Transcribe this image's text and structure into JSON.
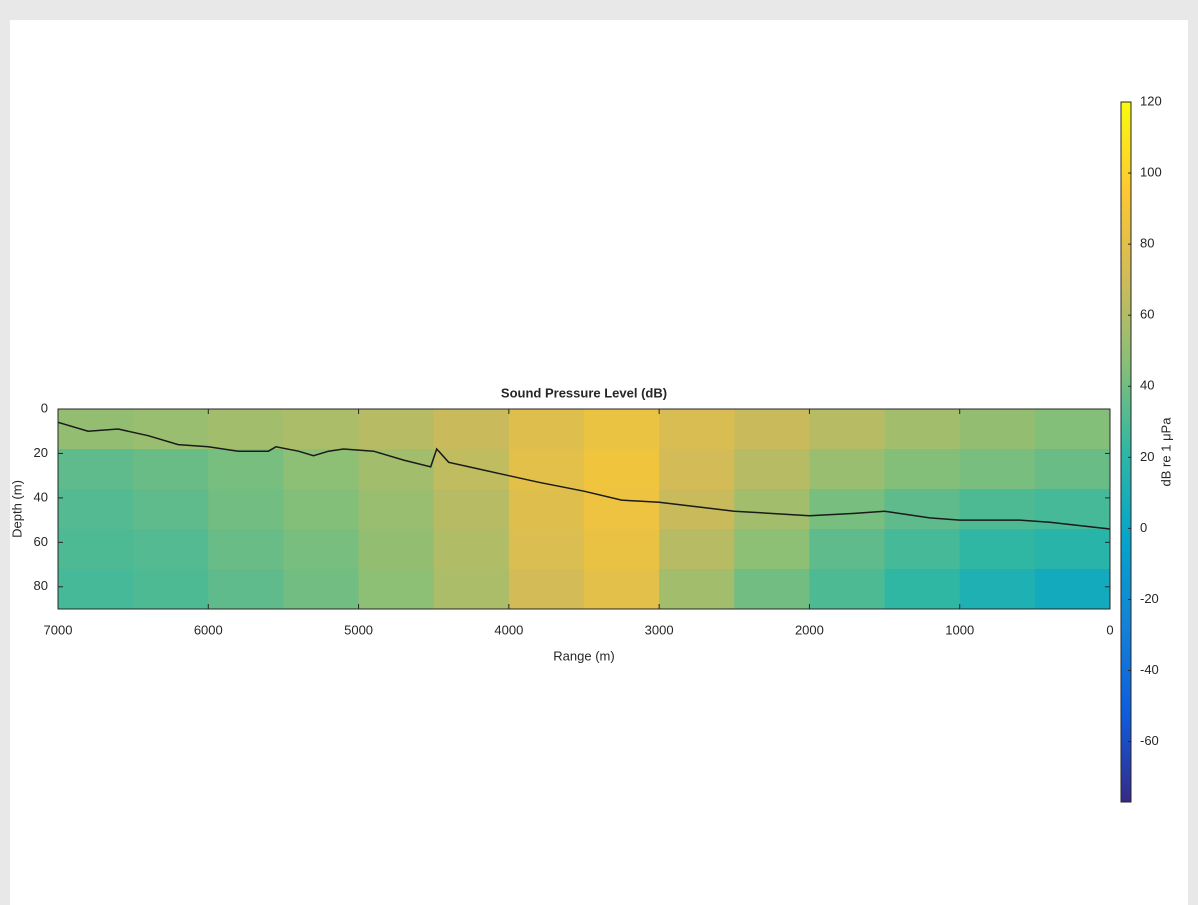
{
  "chart_data": {
    "type": "heatmap",
    "title": "Sound Pressure Level (dB)",
    "x_label": "Range (m)",
    "y_label": "Depth (m)",
    "xlim": [
      7000,
      0
    ],
    "xticks": [
      7000,
      6000,
      5000,
      4000,
      3000,
      2000,
      1000,
      0
    ],
    "ylim": [
      90,
      0
    ],
    "yticks": [
      0,
      20,
      40,
      60,
      80
    ],
    "x_centers": [
      6750,
      6250,
      5750,
      5250,
      4750,
      4250,
      3750,
      3250,
      2750,
      2250,
      1750,
      1250,
      750,
      250
    ],
    "y_centers": [
      9,
      27,
      45,
      63,
      81
    ],
    "z": [
      [
        50,
        52,
        55,
        58,
        62,
        68,
        78,
        85,
        75,
        68,
        62,
        55,
        50,
        45
      ],
      [
        35,
        38,
        42,
        48,
        55,
        65,
        80,
        88,
        72,
        62,
        52,
        45,
        42,
        38
      ],
      [
        32,
        35,
        40,
        45,
        52,
        62,
        78,
        86,
        68,
        55,
        42,
        35,
        30,
        28
      ],
      [
        30,
        32,
        38,
        42,
        50,
        60,
        76,
        84,
        62,
        48,
        35,
        28,
        22,
        18
      ],
      [
        28,
        30,
        35,
        40,
        48,
        58,
        72,
        80,
        55,
        40,
        30,
        22,
        12,
        5
      ]
    ],
    "colormap": [
      "#352a87",
      "#0f5cdd",
      "#1481d6",
      "#06a4ca",
      "#2eb7a4",
      "#87bf77",
      "#d1bb59",
      "#fec832",
      "#f9fb0e"
    ],
    "clim": [
      -77,
      120
    ],
    "cticks": [
      -60,
      -40,
      -20,
      0,
      20,
      40,
      60,
      80,
      100,
      120
    ],
    "colorbar_label": "dB re 1 μPa",
    "line": {
      "color": "#1a1a1a",
      "x": [
        7000,
        6800,
        6600,
        6400,
        6200,
        6000,
        5800,
        5600,
        5550,
        5400,
        5300,
        5200,
        5100,
        4900,
        4700,
        4520,
        4480,
        4400,
        4200,
        4000,
        3800,
        3500,
        3250,
        3000,
        2500,
        2000,
        1700,
        1500,
        1200,
        1000,
        600,
        400,
        0
      ],
      "y": [
        6,
        10,
        9,
        12,
        16,
        17,
        19,
        19,
        17,
        19,
        21,
        19,
        18,
        19,
        23,
        26,
        18,
        24,
        27,
        30,
        33,
        37,
        41,
        42,
        46,
        48,
        47,
        46,
        49,
        50,
        50,
        51,
        54
      ]
    }
  }
}
